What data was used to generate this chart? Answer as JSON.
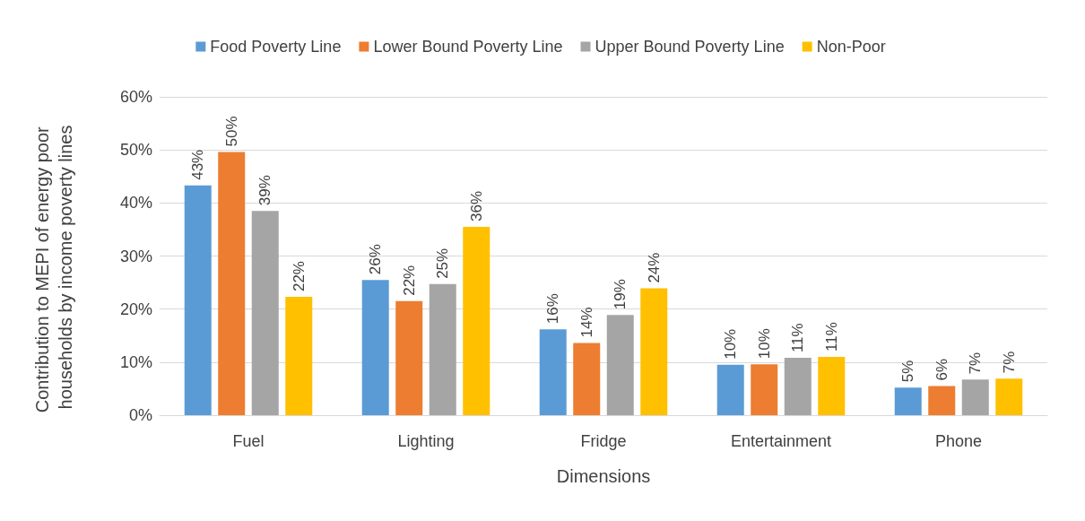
{
  "chart_data": {
    "type": "bar",
    "xlabel": "Dimensions",
    "ylabel": "Contribution to MEPI of energy poor households by income poverty lines",
    "categories": [
      "Fuel",
      "Lighting",
      "Fridge",
      "Entertainment",
      "Phone"
    ],
    "series": [
      {
        "name": "Food Poverty Line",
        "color": "#5b9bd5",
        "values": [
          43.3,
          25.5,
          16.2,
          9.5,
          5.2
        ],
        "value_labels": [
          "43%",
          "26%",
          "16%",
          "10%",
          "5%"
        ]
      },
      {
        "name": "Lower Bound Poverty Line",
        "color": "#ed7d31",
        "values": [
          49.6,
          21.5,
          13.6,
          9.6,
          5.5
        ],
        "value_labels": [
          "50%",
          "22%",
          "14%",
          "10%",
          "6%"
        ]
      },
      {
        "name": "Upper Bound Poverty Line",
        "color": "#a5a5a5",
        "values": [
          38.5,
          24.7,
          18.9,
          10.8,
          6.7
        ],
        "value_labels": [
          "39%",
          "25%",
          "19%",
          "11%",
          "7%"
        ]
      },
      {
        "name": "Non-Poor",
        "color": "#ffc000",
        "values": [
          22.3,
          35.5,
          23.9,
          11.0,
          6.9
        ],
        "value_labels": [
          "22%",
          "36%",
          "24%",
          "11%",
          "7%"
        ]
      }
    ],
    "ylim": [
      0,
      60
    ],
    "yticks": [
      {
        "value": 0,
        "label": "0%"
      },
      {
        "value": 10,
        "label": "10%"
      },
      {
        "value": 20,
        "label": "20%"
      },
      {
        "value": 30,
        "label": "30%"
      },
      {
        "value": 40,
        "label": "40%"
      },
      {
        "value": 50,
        "label": "50%"
      },
      {
        "value": 60,
        "label": "60%"
      }
    ],
    "grid": "y",
    "legend": "top"
  }
}
